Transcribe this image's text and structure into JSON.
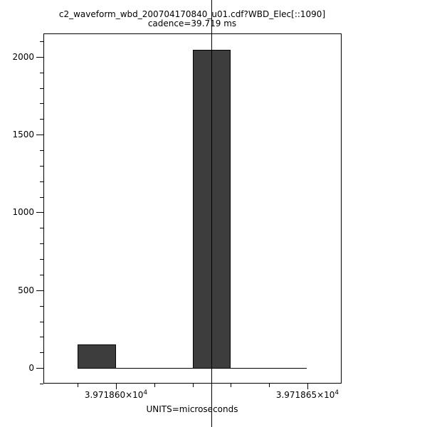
{
  "chart_data": {
    "type": "bar",
    "subtype": "histogram",
    "title": "c2_waveform_wbd_200704170840_u01.cdf?WBD_Elec[::1090]",
    "subtitle": "cadence=39.719 ms",
    "xlabel": "UNITS=microseconds",
    "ylabel": "",
    "x_units": "microseconds",
    "bin_edges": [
      39718.59,
      39718.6,
      39718.61,
      39718.62,
      39718.63,
      39718.64,
      39718.65
    ],
    "counts": [
      150,
      0,
      0,
      2045,
      0,
      0
    ],
    "vline_x": 39718.625,
    "xlim": [
      39718.581,
      39718.659
    ],
    "ylim": [
      -100,
      2150
    ],
    "y_major_ticks": [
      0,
      500,
      1000,
      1500,
      2000
    ],
    "y_tick_labels": [
      "0",
      "500",
      "1000",
      "1500",
      "2000"
    ],
    "y_minor_step": 100,
    "x_major_ticks": [
      39718.6,
      39718.65
    ],
    "x_major_tick_labels": [
      {
        "base": "3.971860×10",
        "exp": "4"
      },
      {
        "base": "3.971865×10",
        "exp": "4"
      }
    ],
    "x_minor_step": 0.01,
    "grid": false,
    "legend": null,
    "bar_color": "#3d3d3d",
    "line_color": "#000000",
    "background_color": "#ffffff"
  }
}
